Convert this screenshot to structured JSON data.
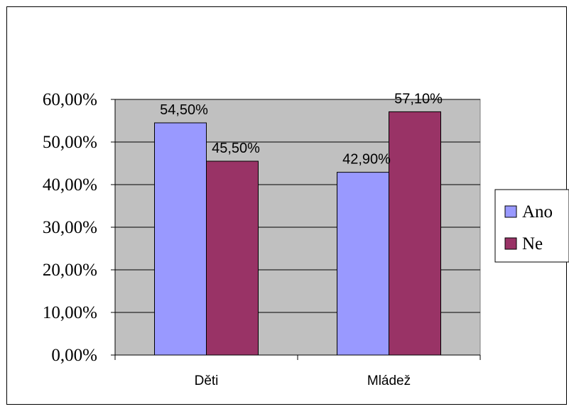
{
  "chart_data": {
    "type": "bar",
    "title": "",
    "xlabel": "",
    "ylabel": "",
    "categories": [
      "Děti",
      "Mládež"
    ],
    "series": [
      {
        "name": "Ano",
        "values": [
          54.5,
          42.9
        ],
        "labels": [
          "54,50%",
          "42,90%"
        ],
        "color": "#9999ff"
      },
      {
        "name": "Ne",
        "values": [
          45.5,
          57.1
        ],
        "labels": [
          "45,50%",
          "57,10%"
        ],
        "color": "#993366"
      }
    ],
    "ylim": [
      0,
      60
    ],
    "y_ticks": [
      0,
      10,
      20,
      30,
      40,
      50,
      60
    ],
    "y_tick_labels": [
      "0,00%",
      "10,00%",
      "20,00%",
      "30,00%",
      "40,00%",
      "50,00%",
      "60,00%"
    ],
    "grid": true,
    "plot_background": "#c0c0c0",
    "legend_position": "right"
  }
}
